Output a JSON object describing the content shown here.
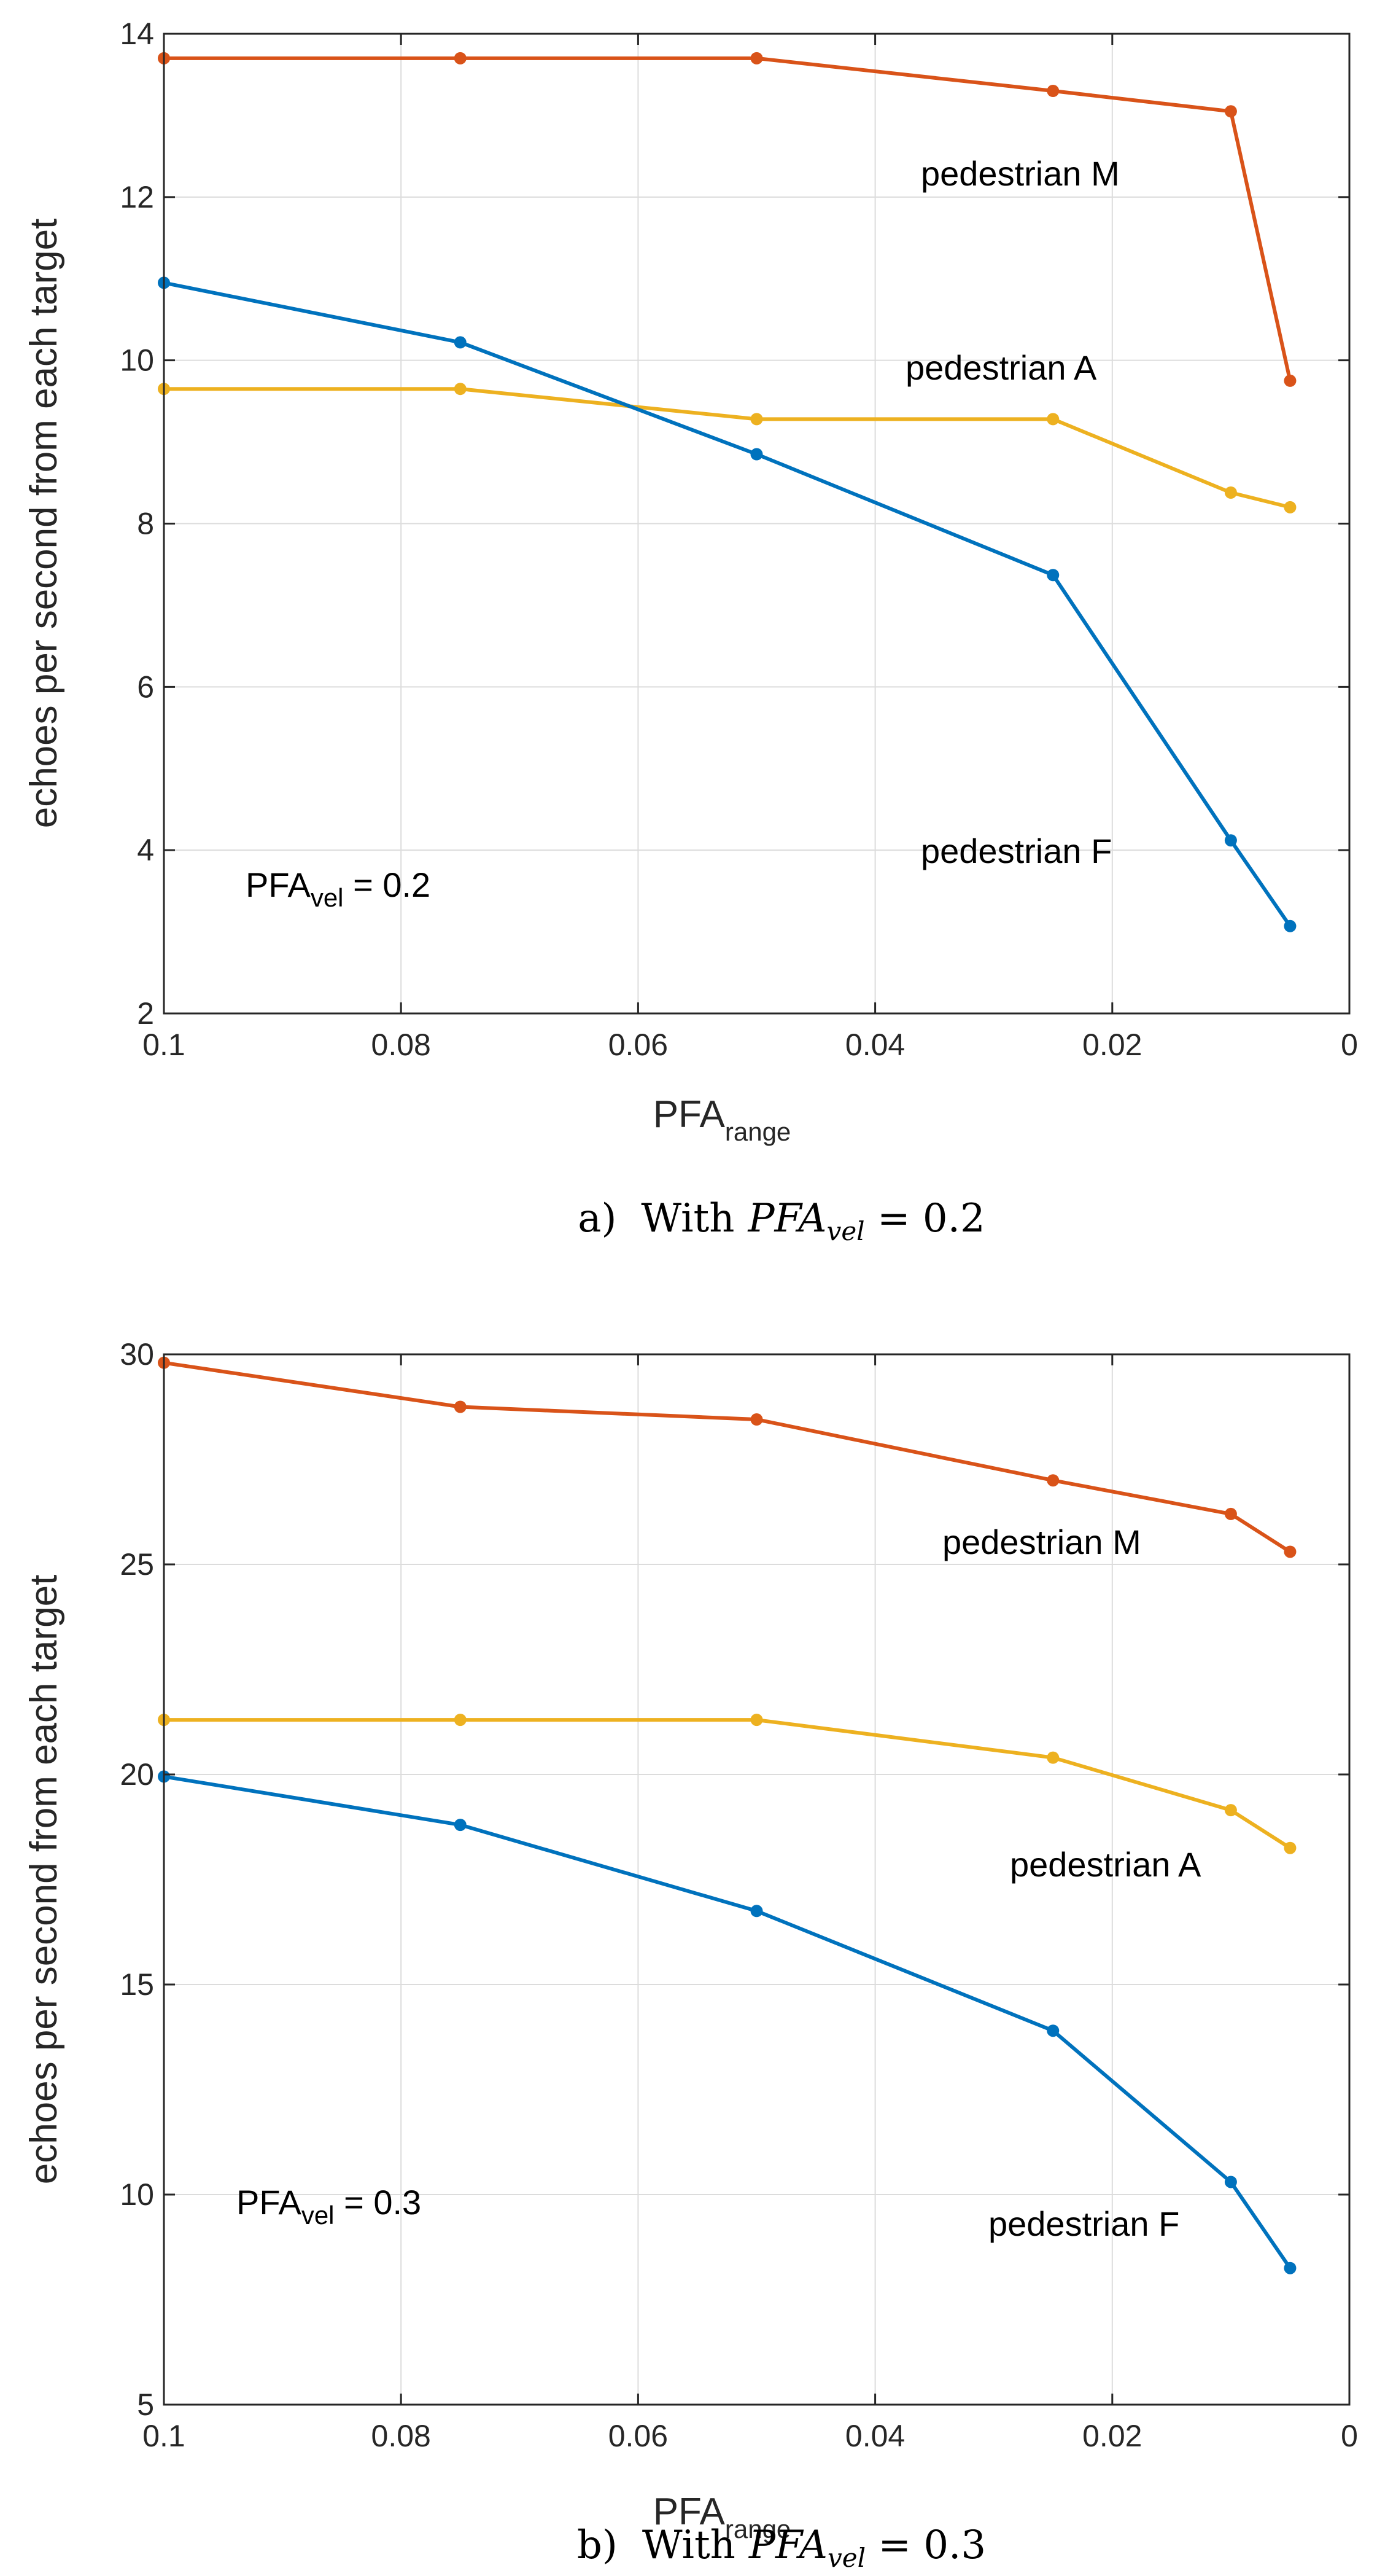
{
  "chart_data": [
    {
      "type": "line",
      "x": [
        0.1,
        0.075,
        0.05,
        0.025,
        0.01,
        0.005
      ],
      "xlim": [
        0.1,
        0
      ],
      "ylim": [
        2,
        14
      ],
      "xticks": [
        "0.1",
        "0.08",
        "0.06",
        "0.04",
        "0.02",
        "0"
      ],
      "xtick_values": [
        0.1,
        0.08,
        0.06,
        0.04,
        0.02,
        0
      ],
      "yticks": [
        "2",
        "4",
        "6",
        "8",
        "10",
        "12",
        "14"
      ],
      "ytick_values": [
        2,
        4,
        6,
        8,
        10,
        12,
        14
      ],
      "xlabel": "PFA",
      "xlabel_sub": "range",
      "ylabel": "echoes per second from each target",
      "grid": true,
      "series": [
        {
          "name": "pedestrian M",
          "color": "#d95319",
          "values": [
            13.7,
            13.7,
            13.7,
            13.3,
            13.05,
            9.75
          ]
        },
        {
          "name": "pedestrian A",
          "color": "#edb120",
          "values": [
            9.65,
            9.65,
            9.28,
            9.28,
            8.38,
            8.2
          ]
        },
        {
          "name": "pedestrian F",
          "color": "#0072bd",
          "values": [
            10.95,
            10.22,
            8.85,
            7.37,
            4.12,
            3.07
          ]
        }
      ],
      "annotations": [
        {
          "text": "pedestrian M",
          "series": 0
        },
        {
          "text": "pedestrian A",
          "series": 1
        },
        {
          "text": "pedestrian F",
          "series": 2
        }
      ],
      "param_label": {
        "main": "PFA",
        "sub": "vel",
        "rest": " = 0.2"
      },
      "caption": {
        "prefix": "a)",
        "word": "With",
        "math_main": "PFA",
        "math_sub": "vel",
        "math_rest": " = 0.2"
      }
    },
    {
      "type": "line",
      "x": [
        0.1,
        0.075,
        0.05,
        0.025,
        0.01,
        0.005
      ],
      "xlim": [
        0.1,
        0
      ],
      "ylim": [
        5,
        30
      ],
      "xticks": [
        "0.1",
        "0.08",
        "0.06",
        "0.04",
        "0.02",
        "0"
      ],
      "xtick_values": [
        0.1,
        0.08,
        0.06,
        0.04,
        0.02,
        0
      ],
      "yticks": [
        "5",
        "10",
        "15",
        "20",
        "25",
        "30"
      ],
      "ytick_values": [
        5,
        10,
        15,
        20,
        25,
        30
      ],
      "xlabel": "PFA",
      "xlabel_sub": "range",
      "ylabel": "echoes per second from each target",
      "grid": true,
      "series": [
        {
          "name": "pedestrian M",
          "color": "#d95319",
          "values": [
            29.8,
            28.75,
            28.45,
            27.0,
            26.2,
            25.3
          ]
        },
        {
          "name": "pedestrian A",
          "color": "#edb120",
          "values": [
            21.3,
            21.3,
            21.3,
            20.4,
            19.15,
            18.25
          ]
        },
        {
          "name": "pedestrian F",
          "color": "#0072bd",
          "values": [
            19.95,
            18.8,
            16.75,
            13.9,
            10.3,
            8.25
          ]
        }
      ],
      "annotations": [
        {
          "text": "pedestrian M",
          "series": 0
        },
        {
          "text": "pedestrian A",
          "series": 1
        },
        {
          "text": "pedestrian F",
          "series": 2
        }
      ],
      "param_label": {
        "main": "PFA",
        "sub": "vel",
        "rest": " = 0.3"
      },
      "caption": {
        "prefix": "b)",
        "word": "With",
        "math_main": "PFA",
        "math_sub": "vel",
        "math_rest": " = 0.3"
      }
    }
  ]
}
